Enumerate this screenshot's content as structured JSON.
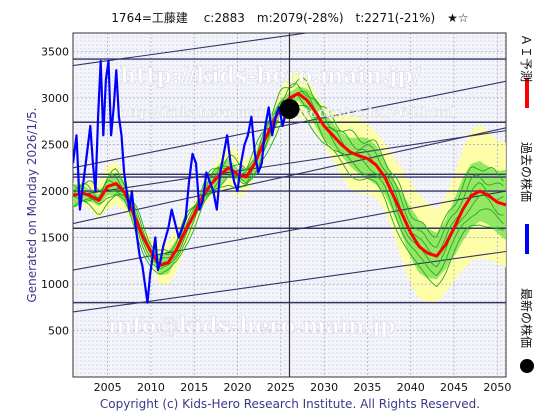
{
  "header": {
    "title": "1764=工藤建　 c:2883　m:2079(-28%)　t:2271(-21%)　★☆"
  },
  "side_label": "Generated on Monday 2026/1/5.",
  "footer": "Copyright (c) Kids-Hero Research Institute. All Rights Reserved.",
  "watermarks": {
    "top": "http://kids-hero.main.jp/",
    "mid": "http://kids-hero.main.jp/stocks/code1764.html",
    "bottom": "info@kids-hero.main.jp"
  },
  "legend": [
    {
      "label": "ＡＩ予測",
      "color": "#ff0000",
      "kind": "line"
    },
    {
      "label": "過去の株価",
      "color": "#0000ff",
      "kind": "line"
    },
    {
      "label": "最新の株価",
      "color": "#000000",
      "kind": "dot"
    }
  ],
  "colors": {
    "ai_forecast": "#ff0000",
    "past_price": "#0000ff",
    "scenario_lines": "#22aa22",
    "band_outer": "#ffff99",
    "band_inner": "#66dd44",
    "trend_lines": "#333366",
    "grid": "#9999bb"
  },
  "chart_data": {
    "type": "line",
    "title": "",
    "xlabel": "",
    "ylabel": "",
    "xlim": [
      2001,
      2051
    ],
    "ylim": [
      0,
      3700
    ],
    "x_ticks": [
      2005,
      2010,
      2015,
      2020,
      2025,
      2030,
      2035,
      2040,
      2045,
      2050
    ],
    "y_ticks": [
      500,
      1000,
      1500,
      2000,
      2500,
      3000,
      3500
    ],
    "grid": true,
    "legend_position": "right-outside",
    "latest_price": {
      "x": 2026.0,
      "y": 2883
    },
    "current_year_marker": 2026.0,
    "horizontal_lines": [
      800,
      1600,
      2000,
      2150,
      2180,
      2740,
      3420
    ],
    "trend_lines": [
      {
        "x": [
          2001,
          2051
        ],
        "y": [
          700,
          1350
        ]
      },
      {
        "x": [
          2001,
          2051
        ],
        "y": [
          1150,
          2000
        ]
      },
      {
        "x": [
          2001,
          2051
        ],
        "y": [
          1650,
          2680
        ]
      },
      {
        "x": [
          2001,
          2051
        ],
        "y": [
          1950,
          2650
        ]
      },
      {
        "x": [
          2001,
          2051
        ],
        "y": [
          2250,
          3180
        ]
      },
      {
        "x": [
          2001,
          2051
        ],
        "y": [
          3350,
          4000
        ]
      }
    ],
    "series": [
      {
        "name": "過去の株価",
        "x": [
          2001.0,
          2001.4,
          2001.8,
          2002.2,
          2002.6,
          2003.0,
          2003.3,
          2003.6,
          2003.9,
          2004.2,
          2004.5,
          2004.8,
          2005.1,
          2005.4,
          2005.7,
          2006.0,
          2006.3,
          2006.6,
          2006.9,
          2007.2,
          2007.5,
          2007.8,
          2008.1,
          2008.4,
          2008.7,
          2009.0,
          2009.3,
          2009.6,
          2009.9,
          2010.2,
          2010.5,
          2010.8,
          2011.1,
          2011.4,
          2011.7,
          2012.0,
          2012.4,
          2012.8,
          2013.2,
          2013.6,
          2014.0,
          2014.4,
          2014.8,
          2015.2,
          2015.6,
          2016.0,
          2016.4,
          2016.8,
          2017.2,
          2017.6,
          2018.0,
          2018.4,
          2018.8,
          2019.2,
          2019.6,
          2020.0,
          2020.4,
          2020.8,
          2021.2,
          2021.6,
          2022.0,
          2022.4,
          2022.8,
          2023.2,
          2023.6,
          2024.0,
          2024.4,
          2024.8,
          2025.2,
          2025.6,
          2026.0
        ],
        "y": [
          2300,
          2600,
          1800,
          2100,
          2400,
          2700,
          2300,
          2000,
          2800,
          3400,
          2600,
          3200,
          3400,
          2600,
          2900,
          3300,
          2800,
          2600,
          2200,
          2000,
          1800,
          2000,
          1700,
          1500,
          1300,
          1200,
          1000,
          800,
          1100,
          1300,
          1500,
          1150,
          1250,
          1400,
          1500,
          1600,
          1800,
          1650,
          1500,
          1600,
          1700,
          2100,
          2400,
          2300,
          1800,
          1900,
          2200,
          2100,
          2000,
          1800,
          2200,
          2400,
          2600,
          2300,
          2100,
          2000,
          2300,
          2500,
          2600,
          2800,
          2400,
          2200,
          2300,
          2700,
          2900,
          2600,
          2800,
          2900,
          2700,
          2850,
          2883
        ]
      },
      {
        "name": "ＡＩ予測",
        "x": [
          2001,
          2002,
          2003,
          2004,
          2005,
          2006,
          2007,
          2008,
          2009,
          2010,
          2011,
          2012,
          2013,
          2014,
          2015,
          2016,
          2017,
          2018,
          2019,
          2020,
          2021,
          2022,
          2023,
          2024,
          2025,
          2026,
          2027,
          2028,
          2029,
          2030,
          2031,
          2032,
          2033,
          2034,
          2035,
          2036,
          2037,
          2038,
          2039,
          2040,
          2041,
          2042,
          2043,
          2044,
          2045,
          2046,
          2047,
          2048,
          2049,
          2050,
          2051
        ],
        "y": [
          1950,
          1980,
          1950,
          1900,
          2050,
          2080,
          1980,
          1750,
          1520,
          1350,
          1200,
          1230,
          1380,
          1580,
          1750,
          1950,
          2080,
          2180,
          2250,
          2180,
          2150,
          2300,
          2520,
          2720,
          2900,
          3000,
          3050,
          2980,
          2850,
          2700,
          2600,
          2500,
          2420,
          2380,
          2350,
          2280,
          2150,
          1950,
          1750,
          1550,
          1400,
          1330,
          1300,
          1420,
          1600,
          1800,
          1950,
          2000,
          1950,
          1880,
          1850
        ]
      }
    ]
  }
}
